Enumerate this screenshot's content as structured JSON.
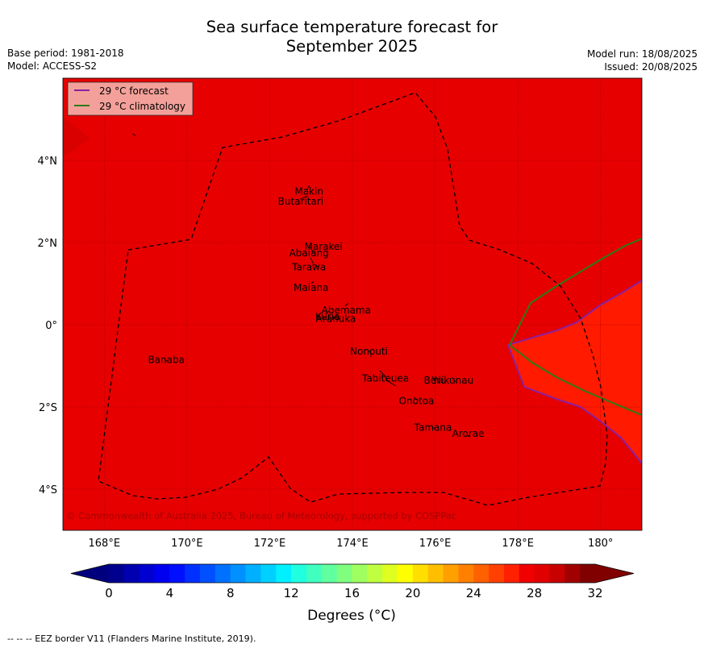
{
  "title": "Sea surface temperature forecast for\nSeptember 2025",
  "title_line1": "Sea surface temperature forecast for",
  "title_line2": "September 2025",
  "meta_left": {
    "base_period": "Base period: 1981-2018",
    "model": "Model: ACCESS-S2"
  },
  "meta_right": {
    "model_run": "Model run: 18/08/2025",
    "issued": "Issued: 20/08/2025"
  },
  "legend": {
    "forecast_label": "29 °C  forecast",
    "climatology_label": "29 °C  climatology",
    "forecast_color": "#8b1fa0",
    "climatology_color": "#2e7a16"
  },
  "axes": {
    "lon_ticks": [
      "168°E",
      "170°E",
      "172°E",
      "174°E",
      "176°E",
      "178°E",
      "180°"
    ],
    "lat_ticks": [
      "4°N",
      "2°N",
      "0°",
      "2°S",
      "4°S"
    ]
  },
  "places": [
    {
      "name": "Makin",
      "lon": 172.95,
      "lat": 3.25
    },
    {
      "name": "Butaritari",
      "lon": 172.75,
      "lat": 3.0
    },
    {
      "name": "Marakei",
      "lon": 173.3,
      "lat": 1.9
    },
    {
      "name": "Abaiang",
      "lon": 172.95,
      "lat": 1.75
    },
    {
      "name": "Tarawa",
      "lon": 172.95,
      "lat": 1.4
    },
    {
      "name": "Maiana",
      "lon": 173.0,
      "lat": 0.9
    },
    {
      "name": "Abemama",
      "lon": 173.85,
      "lat": 0.35
    },
    {
      "name": "Kuria",
      "lon": 173.4,
      "lat": 0.2
    },
    {
      "name": "Aranuka",
      "lon": 173.6,
      "lat": 0.15
    },
    {
      "name": "Nonouti",
      "lon": 174.4,
      "lat": -0.65
    },
    {
      "name": "Banaba",
      "lon": 169.5,
      "lat": -0.85
    },
    {
      "name": "Beru",
      "lon": 176.0,
      "lat": -1.35
    },
    {
      "name": "Nikunau",
      "lon": 176.45,
      "lat": -1.35
    },
    {
      "name": "Tabiteuea",
      "lon": 174.8,
      "lat": -1.3
    },
    {
      "name": "Onotoa",
      "lon": 175.55,
      "lat": -1.85
    },
    {
      "name": "Tamana",
      "lon": 175.95,
      "lat": -2.5
    },
    {
      "name": "Arorae",
      "lon": 176.8,
      "lat": -2.65
    }
  ],
  "copyright": "© Commonwealth of Australia 2025, Bureau of Meteorology, supported by COSPPac",
  "colorbar": {
    "ticks": [
      "0",
      "4",
      "8",
      "12",
      "16",
      "20",
      "24",
      "28",
      "32"
    ],
    "label": "Degrees ($^\\circ$C)",
    "label_display": "Degrees (°C)",
    "min": 0,
    "max": 32,
    "step": 1,
    "colors": [
      "#00008f",
      "#0000b0",
      "#0000d0",
      "#0000f0",
      "#0010ff",
      "#0030ff",
      "#0050ff",
      "#0070ff",
      "#0090ff",
      "#00b0ff",
      "#00d0ff",
      "#00f0ff",
      "#20ffdf",
      "#40ffbf",
      "#60ff9f",
      "#80ff7f",
      "#9fff60",
      "#bfff40",
      "#dfff20",
      "#ffff00",
      "#ffdf00",
      "#ffbf00",
      "#ff9f00",
      "#ff8000",
      "#ff6000",
      "#ff4000",
      "#ff2000",
      "#f00000",
      "#e00000",
      "#c80000",
      "#a00000",
      "#800000"
    ],
    "under_color": "#00007f",
    "over_color": "#800000"
  },
  "map": {
    "lon_range": [
      167.0,
      181.0
    ],
    "lat_range": [
      -5.0,
      6.0
    ],
    "background_color": "#e60000",
    "warm_region_color": "#ff1a00"
  },
  "footnote": "--  --  -- EEZ border V11 (Flanders Marine Institute, 2019)."
}
